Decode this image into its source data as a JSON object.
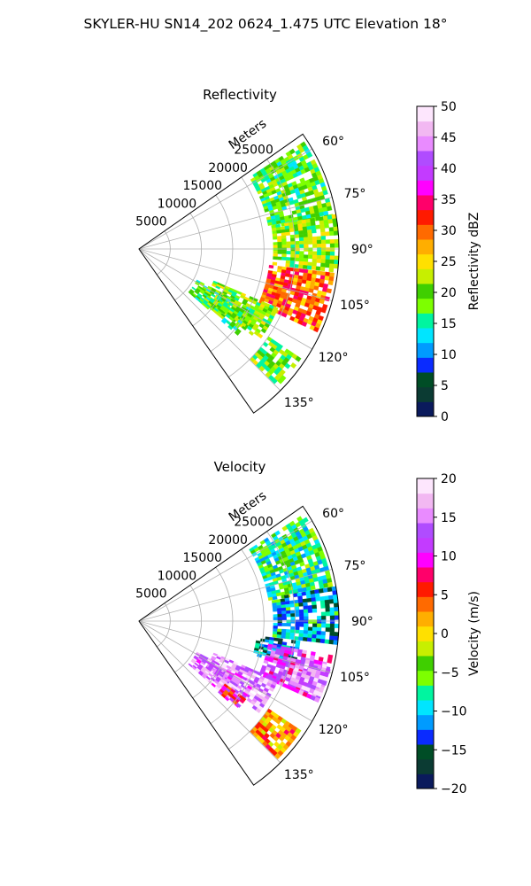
{
  "figure": {
    "title": "SKYLER-HU  SN14_202  0624_1.475 UTC Elevation 18°"
  },
  "chart_data": [
    {
      "type": "heatmap",
      "projection": "polar-sector",
      "title": "Reflectivity",
      "radial_axis_label": "Meters",
      "radial_ticks": [
        "5000",
        "10000",
        "15000",
        "20000",
        "25000"
      ],
      "radial_tick_values": [
        5000,
        10000,
        15000,
        20000,
        25000
      ],
      "rlim": [
        0,
        32000
      ],
      "azimuth_ticks": [
        "60°",
        "75°",
        "90°",
        "105°",
        "120°",
        "135°"
      ],
      "azimuth_tick_values": [
        60,
        75,
        90,
        105,
        120,
        135
      ],
      "azimuth_range": [
        55,
        145
      ],
      "grid": true,
      "colorbar": {
        "label": "Reflectivity dBZ",
        "ticks": [
          "0",
          "5",
          "10",
          "15",
          "20",
          "25",
          "30",
          "35",
          "40",
          "45",
          "50"
        ],
        "min": 0,
        "max": 50
      },
      "echo_regions": [
        {
          "az": [
            57,
            80
          ],
          "r": [
            21000,
            31500
          ],
          "value": 18
        },
        {
          "az": [
            80,
            96
          ],
          "r": [
            21500,
            32000
          ],
          "value": 21
        },
        {
          "az": [
            97,
            114
          ],
          "r": [
            21000,
            31500
          ],
          "value": 30
        },
        {
          "az": [
            113,
            127
          ],
          "r": [
            13000,
            24000
          ],
          "value": 20
        },
        {
          "az": [
            118,
            131
          ],
          "r": [
            10500,
            20500
          ],
          "value": 18
        },
        {
          "az": [
            124,
            134
          ],
          "r": [
            25000,
            31000
          ],
          "value": 19
        }
      ]
    },
    {
      "type": "heatmap",
      "projection": "polar-sector",
      "title": "Velocity",
      "radial_axis_label": "Meters",
      "radial_ticks": [
        "5000",
        "10000",
        "15000",
        "20000",
        "25000"
      ],
      "radial_tick_values": [
        5000,
        10000,
        15000,
        20000,
        25000
      ],
      "rlim": [
        0,
        32000
      ],
      "azimuth_ticks": [
        "60°",
        "75°",
        "90°",
        "105°",
        "120°",
        "135°"
      ],
      "azimuth_tick_values": [
        60,
        75,
        90,
        105,
        120,
        135
      ],
      "azimuth_range": [
        55,
        145
      ],
      "grid": true,
      "colorbar": {
        "label": "Velocity (m/s)",
        "ticks": [
          "−20",
          "−15",
          "−10",
          "−5",
          "0",
          "5",
          "10",
          "15",
          "20"
        ],
        "min": -20,
        "max": 20
      },
      "echo_regions": [
        {
          "az": [
            57,
            80
          ],
          "r": [
            21000,
            31500
          ],
          "value": -7
        },
        {
          "az": [
            80,
            96
          ],
          "r": [
            21500,
            32000
          ],
          "value": -11
        },
        {
          "az": [
            97,
            106
          ],
          "r": [
            19000,
            26000
          ],
          "value": -12
        },
        {
          "az": [
            100,
            114
          ],
          "r": [
            21000,
            31500
          ],
          "value": 12
        },
        {
          "az": [
            103,
            112
          ],
          "r": [
            26000,
            31500
          ],
          "value": 16
        },
        {
          "az": [
            113,
            127
          ],
          "r": [
            13000,
            24000
          ],
          "value": 16
        },
        {
          "az": [
            118,
            131
          ],
          "r": [
            10500,
            20500
          ],
          "value": 15
        },
        {
          "az": [
            124,
            134
          ],
          "r": [
            25000,
            31000
          ],
          "value": 3
        },
        {
          "az": [
            126,
            131
          ],
          "r": [
            17000,
            21000
          ],
          "value": 8
        }
      ]
    }
  ],
  "colors": {
    "reflectivity_scale": [
      "#0a1a5c",
      "#0b3b33",
      "#004d26",
      "#0a2bff",
      "#009bff",
      "#00e5ff",
      "#00f5a0",
      "#7dff00",
      "#3fcf00",
      "#c7ef00",
      "#ffe000",
      "#ffae00",
      "#ff6a00",
      "#ff1a00",
      "#ff006a",
      "#ff00ff",
      "#c33bff",
      "#b04cff",
      "#e98bff",
      "#f2b8f2",
      "#fde6fd"
    ],
    "velocity_scale": [
      "#0a1a5c",
      "#0b3b33",
      "#004d26",
      "#0a2bff",
      "#009bff",
      "#00e5ff",
      "#00f5a0",
      "#7dff00",
      "#3fcf00",
      "#c7ef00",
      "#ffe000",
      "#ffae00",
      "#ff6a00",
      "#ff1a00",
      "#ff006a",
      "#ff00ff",
      "#c33bff",
      "#b04cff",
      "#e98bff",
      "#f2b8f2",
      "#fde6fd"
    ],
    "grid": "#b0b0b0",
    "frame": "#000000"
  }
}
